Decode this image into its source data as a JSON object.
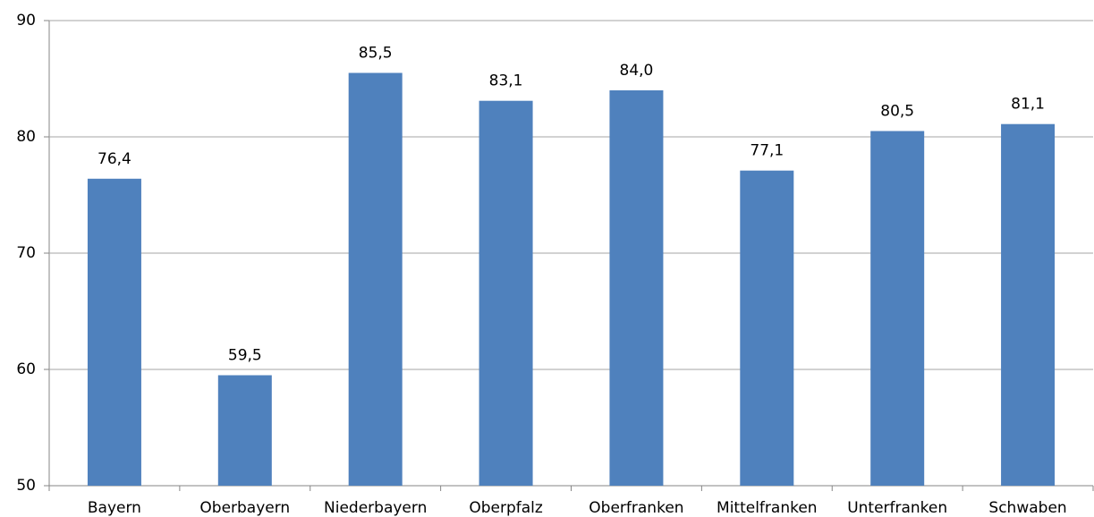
{
  "chart_data": {
    "type": "bar",
    "categories": [
      "Bayern",
      "Oberbayern",
      "Niederbayern",
      "Oberpfalz",
      "Oberfranken",
      "Mittelfranken",
      "Unterfranken",
      "Schwaben"
    ],
    "values": [
      76.4,
      59.5,
      85.5,
      83.1,
      84.0,
      77.1,
      80.5,
      81.1
    ],
    "value_labels": [
      "76,4",
      "59,5",
      "85,5",
      "83,1",
      "84,0",
      "77,1",
      "80,5",
      "81,1"
    ],
    "color": "#4f81bd",
    "ylim": [
      50,
      90
    ],
    "yticks": [
      50,
      60,
      70,
      80,
      90
    ],
    "grid": true
  }
}
